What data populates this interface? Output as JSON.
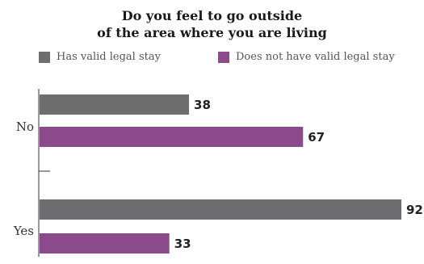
{
  "chart_data": {
    "type": "bar",
    "orientation": "horizontal",
    "title_line1": "Do you feel to go outside",
    "title_line2": "of the area where you are living",
    "categories": [
      "No",
      "Yes"
    ],
    "series": [
      {
        "name": "Has valid legal stay",
        "color": "#6e6e70",
        "values": [
          38,
          92
        ]
      },
      {
        "name": "Does not have valid legal stay",
        "color": "#8a4a8c",
        "values": [
          67,
          33
        ]
      }
    ],
    "xlim": [
      0,
      100
    ],
    "legend_position": "top",
    "grid": false
  }
}
